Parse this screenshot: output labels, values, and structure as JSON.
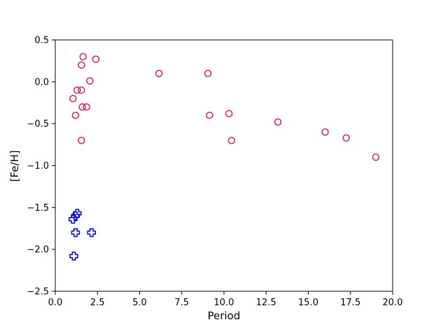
{
  "chart_data": {
    "type": "scatter",
    "title": "",
    "xlabel": "Period",
    "ylabel": "[Fe/H]",
    "xlim": [
      0.0,
      20.0
    ],
    "ylim": [
      -2.5,
      0.5
    ],
    "xticks": [
      0.0,
      2.5,
      5.0,
      7.5,
      10.0,
      12.5,
      15.0,
      17.5,
      20.0
    ],
    "xtick_labels": [
      "0.0",
      "2.5",
      "5.0",
      "7.5",
      "10.0",
      "12.5",
      "15.0",
      "17.5",
      "20.0"
    ],
    "yticks": [
      0.5,
      0.0,
      -0.5,
      -1.0,
      -1.5,
      -2.0,
      -2.5
    ],
    "ytick_labels": [
      "0.5",
      "0.0",
      "−0.5",
      "−1.0",
      "−1.5",
      "−2.0",
      "−2.5"
    ],
    "grid": false,
    "series": [
      {
        "marker": "circle",
        "color": "#d6204f",
        "points": [
          [
            1.65,
            0.3
          ],
          [
            2.4,
            0.27
          ],
          [
            1.55,
            0.2
          ],
          [
            6.15,
            0.1
          ],
          [
            9.05,
            0.1
          ],
          [
            2.05,
            0.01
          ],
          [
            1.3,
            -0.1
          ],
          [
            1.55,
            -0.1
          ],
          [
            1.05,
            -0.2
          ],
          [
            1.6,
            -0.3
          ],
          [
            1.85,
            -0.3
          ],
          [
            1.2,
            -0.4
          ],
          [
            10.3,
            -0.38
          ],
          [
            9.15,
            -0.4
          ],
          [
            13.2,
            -0.48
          ],
          [
            16.0,
            -0.6
          ],
          [
            17.25,
            -0.67
          ],
          [
            1.55,
            -0.7
          ],
          [
            10.45,
            -0.7
          ],
          [
            19.0,
            -0.9
          ]
        ]
      },
      {
        "marker": "plus",
        "color": "#0000cc",
        "points": [
          [
            1.3,
            -1.57
          ],
          [
            1.2,
            -1.6
          ],
          [
            1.05,
            -1.64
          ],
          [
            1.2,
            -1.8
          ],
          [
            2.15,
            -1.8
          ],
          [
            1.1,
            -2.08
          ]
        ]
      }
    ]
  }
}
